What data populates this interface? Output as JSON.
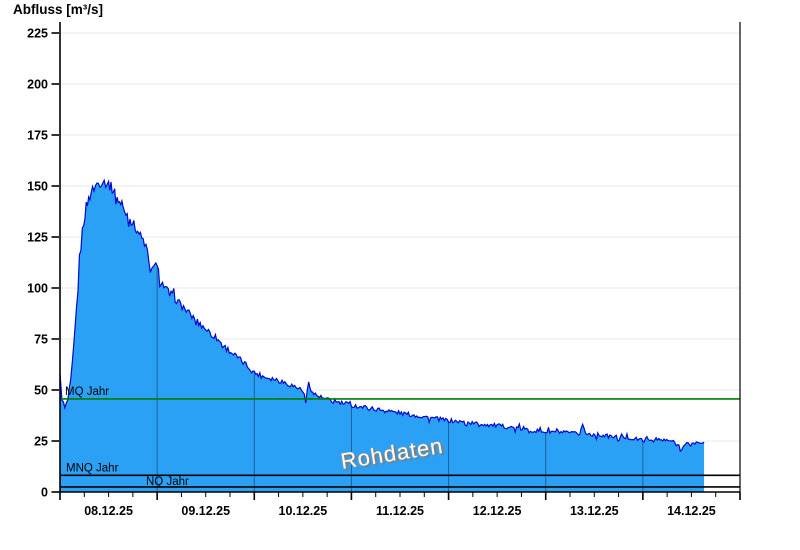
{
  "page": {
    "background": "#ffffff"
  },
  "chart_data": {
    "type": "area",
    "title": "Abfluss [m³/s]",
    "watermark": "Rohdaten",
    "x_axis": {
      "tick_labels": [
        "08.12.25",
        "09.12.25",
        "10.12.25",
        "11.12.25",
        "12.12.25",
        "13.12.25",
        "14.12.25"
      ],
      "days": 7,
      "minor_ticks_per_day": 4
    },
    "y_axis": {
      "ticks": [
        0,
        25,
        50,
        75,
        100,
        125,
        150,
        175,
        200,
        225
      ],
      "range": [
        0,
        225
      ]
    },
    "series": [
      {
        "name": "Abfluss Rohdaten",
        "unit": "m³/s",
        "points_day_value": [
          [
            0.0,
            58
          ],
          [
            0.02,
            46
          ],
          [
            0.05,
            41
          ],
          [
            0.08,
            45
          ],
          [
            0.11,
            54
          ],
          [
            0.14,
            70
          ],
          [
            0.17,
            90
          ],
          [
            0.2,
            112
          ],
          [
            0.23,
            128
          ],
          [
            0.27,
            140
          ],
          [
            0.32,
            147
          ],
          [
            0.38,
            151
          ],
          [
            0.44,
            152.5
          ],
          [
            0.5,
            151
          ],
          [
            0.55,
            148
          ],
          [
            0.6,
            143
          ],
          [
            0.65,
            139
          ],
          [
            0.72,
            134
          ],
          [
            0.8,
            128
          ],
          [
            0.87,
            122
          ],
          [
            0.9,
            118
          ],
          [
            0.93,
            106
          ],
          [
            0.96,
            112
          ],
          [
            1.0,
            110
          ],
          [
            1.04,
            103
          ],
          [
            1.1,
            99
          ],
          [
            1.2,
            94
          ],
          [
            1.3,
            89
          ],
          [
            1.4,
            84
          ],
          [
            1.5,
            80
          ],
          [
            1.6,
            76
          ],
          [
            1.7,
            71
          ],
          [
            1.8,
            67
          ],
          [
            1.9,
            63
          ],
          [
            2.0,
            58.5
          ],
          [
            2.1,
            56.5
          ],
          [
            2.2,
            55.5
          ],
          [
            2.3,
            54
          ],
          [
            2.4,
            52
          ],
          [
            2.5,
            50
          ],
          [
            2.53,
            44
          ],
          [
            2.56,
            54
          ],
          [
            2.6,
            48.5
          ],
          [
            2.7,
            46
          ],
          [
            2.8,
            44.5
          ],
          [
            2.9,
            43.5
          ],
          [
            3.0,
            42.5
          ],
          [
            3.2,
            41
          ],
          [
            3.4,
            39.5
          ],
          [
            3.6,
            38
          ],
          [
            3.8,
            36.5
          ],
          [
            4.0,
            35
          ],
          [
            4.2,
            34
          ],
          [
            4.4,
            33
          ],
          [
            4.6,
            32
          ],
          [
            4.8,
            30.5
          ],
          [
            5.0,
            29.5
          ],
          [
            5.1,
            29.5
          ],
          [
            5.2,
            29
          ],
          [
            5.35,
            28.5
          ],
          [
            5.38,
            33.5
          ],
          [
            5.41,
            28.5
          ],
          [
            5.55,
            28
          ],
          [
            5.7,
            27
          ],
          [
            5.85,
            26.5
          ],
          [
            6.0,
            25.5
          ],
          [
            6.15,
            25.5
          ],
          [
            6.3,
            25
          ],
          [
            6.4,
            21.5
          ],
          [
            6.45,
            23.5
          ],
          [
            6.55,
            24
          ],
          [
            6.63,
            24.5
          ]
        ]
      }
    ],
    "data_end_day": 6.63,
    "reference_lines": [
      {
        "label": "MQ Jahr",
        "value": 45.6,
        "color": "#007c00"
      },
      {
        "label": "MNQ Jahr",
        "value": 8.2,
        "color": "#000000"
      },
      {
        "label": "NQ Jahr",
        "value": 2.5,
        "color": "#000000"
      }
    ],
    "colors": {
      "fill": "#2ba1f5",
      "stroke": "#0008cc",
      "grid": "#e9e9e9",
      "day_separator": "rgba(15,45,75,0.55)",
      "axis": "#000000"
    }
  }
}
